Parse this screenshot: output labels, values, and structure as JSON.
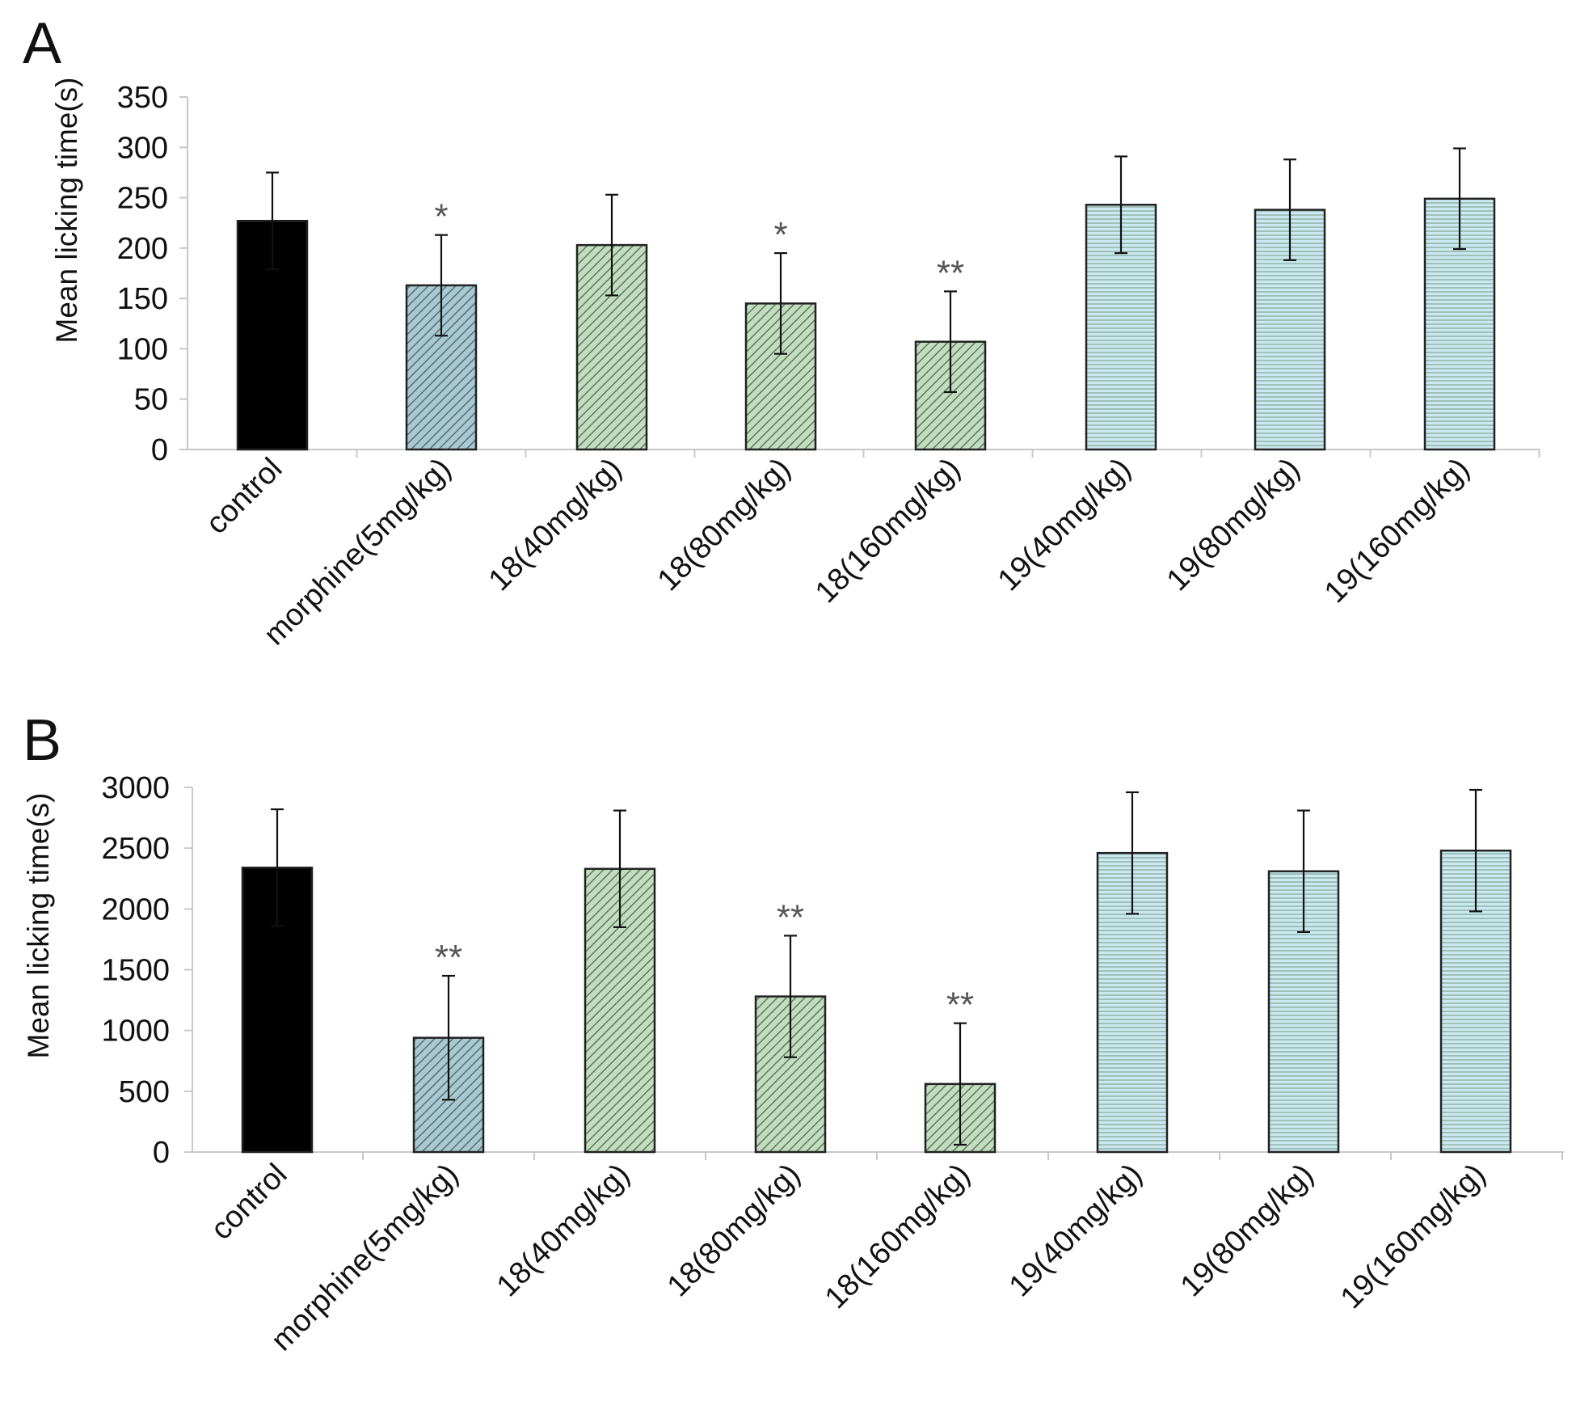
{
  "chart_data": [
    {
      "type": "bar",
      "panel": "A",
      "ylabel": "Mean licking time(s)",
      "xlabel": "",
      "ylim": [
        0,
        350
      ],
      "yticks": [
        "0",
        "50",
        "100",
        "150",
        "200",
        "250",
        "300",
        "350"
      ],
      "ytick_values": [
        0,
        50,
        100,
        150,
        200,
        250,
        300,
        350
      ],
      "categories": [
        "control",
        "morphine(5mg/kg)",
        "18(40mg/kg)",
        "18(80mg/kg)",
        "18(160mg/kg)",
        "19(40mg/kg)",
        "19(80mg/kg)",
        "19(160mg/kg)"
      ],
      "values": [
        227,
        163,
        203,
        145,
        107,
        243,
        238,
        249
      ],
      "errors": [
        48,
        50,
        50,
        50,
        50,
        48,
        50,
        50
      ],
      "significance": [
        "",
        "*",
        "",
        "*",
        "**",
        "",
        "",
        ""
      ],
      "fills": [
        "black",
        "hatch-blue",
        "hatch-green",
        "hatch-green",
        "hatch-green",
        "stripe-blue",
        "stripe-blue",
        "stripe-blue"
      ]
    },
    {
      "type": "bar",
      "panel": "B",
      "ylabel": "Mean licking time(s)",
      "xlabel": "",
      "ylim": [
        0,
        3000
      ],
      "yticks": [
        "0",
        "500",
        "1000",
        "1500",
        "2000",
        "2500",
        "3000"
      ],
      "ytick_values": [
        0,
        500,
        1000,
        1500,
        2000,
        2500,
        3000
      ],
      "categories": [
        "control",
        "morphine(5mg/kg)",
        "18(40mg/kg)",
        "18(80mg/kg)",
        "18(160mg/kg)",
        "19(40mg/kg)",
        "19(80mg/kg)",
        "19(160mg/kg)"
      ],
      "values": [
        2340,
        940,
        2330,
        1280,
        560,
        2460,
        2310,
        2480
      ],
      "errors": [
        480,
        510,
        480,
        500,
        500,
        500,
        500,
        500
      ],
      "significance": [
        "",
        "**",
        "",
        "**",
        "**",
        "",
        "",
        ""
      ],
      "fills": [
        "black",
        "hatch-blue",
        "hatch-green",
        "hatch-green",
        "hatch-green",
        "stripe-blue",
        "stripe-blue",
        "stripe-blue"
      ]
    }
  ],
  "colors": {
    "axis": "#c8c8c8",
    "bar_outline": "#222222",
    "control": "#000000",
    "hatch_blue_bg": "#a9c8cf",
    "hatch_blue_line": "#4f6f7c",
    "hatch_green_bg": "#c3dcc0",
    "hatch_green_line": "#587a5a",
    "stripe_blue_bg": "#c9e8ef",
    "stripe_blue_line": "#8fb0a4"
  }
}
